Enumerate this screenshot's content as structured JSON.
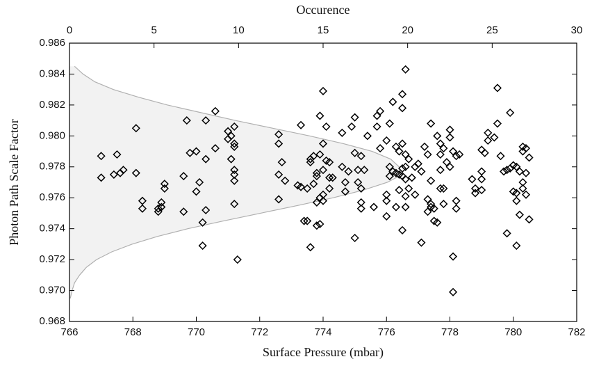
{
  "chart_data": {
    "type": "scatter",
    "xlabel": "Surface Pressure (mbar)",
    "ylabel": "Photon Path Scale Factor",
    "x2label": "Occurence",
    "xlim": [
      766,
      782
    ],
    "xticks": [
      766,
      768,
      770,
      772,
      774,
      776,
      778,
      780,
      782
    ],
    "ylim": [
      0.968,
      0.986
    ],
    "yticks": [
      0.968,
      {
        "value": 0.97,
        "label": "0.970"
      },
      0.972,
      0.974,
      0.976,
      0.978,
      {
        "value": 0.98,
        "label": "0.980"
      },
      0.982,
      0.984,
      0.986
    ],
    "x2lim": [
      0,
      30
    ],
    "x2ticks": [
      0,
      5,
      10,
      15,
      20,
      25,
      30
    ],
    "color": "#000000",
    "series": [
      {
        "x": [
          767.0,
          767.0,
          767.4,
          767.5,
          767.6,
          767.7,
          768.1,
          768.1,
          768.3,
          768.3,
          768.8,
          768.9,
          768.9,
          769.0,
          769.0,
          768.8,
          769.6,
          769.6,
          769.7,
          769.8,
          770.0,
          770.0,
          770.1,
          770.2,
          770.2,
          770.3,
          770.3,
          770.3,
          770.6,
          770.6,
          771.0,
          771.0,
          771.1,
          771.1,
          771.2,
          771.2,
          771.2,
          771.2,
          771.2,
          771.2,
          771.2,
          771.3,
          772.6,
          772.6,
          772.6,
          772.6,
          772.7,
          772.8,
          773.3,
          773.3,
          773.2,
          773.4,
          773.5,
          773.5,
          773.6,
          773.6,
          773.6,
          773.7,
          773.7,
          773.8,
          773.8,
          773.8,
          773.8,
          773.9,
          773.9,
          773.9,
          773.9,
          774.0,
          774.0,
          774.0,
          774.0,
          774.0,
          774.1,
          774.1,
          774.2,
          774.2,
          774.2,
          774.3,
          774.6,
          774.6,
          774.7,
          774.7,
          774.8,
          774.9,
          775.0,
          775.0,
          775.0,
          775.1,
          775.1,
          775.2,
          775.2,
          775.2,
          775.2,
          775.3,
          775.4,
          775.6,
          775.7,
          775.7,
          775.8,
          775.8,
          776.0,
          776.0,
          776.0,
          776.0,
          776.1,
          776.1,
          776.1,
          776.2,
          776.2,
          776.3,
          776.3,
          776.3,
          776.4,
          776.4,
          776.4,
          776.5,
          776.5,
          776.5,
          776.5,
          776.5,
          776.5,
          776.6,
          776.6,
          776.6,
          776.6,
          776.6,
          776.6,
          776.7,
          776.7,
          776.8,
          776.9,
          776.9,
          777.0,
          777.1,
          777.1,
          777.2,
          777.3,
          777.3,
          777.3,
          777.4,
          777.4,
          777.4,
          777.4,
          777.5,
          777.5,
          777.6,
          777.6,
          777.7,
          777.7,
          777.7,
          777.7,
          777.8,
          777.8,
          777.8,
          777.9,
          778.0,
          778.0,
          778.0,
          778.1,
          778.1,
          778.1,
          778.2,
          778.2,
          778.2,
          778.3,
          778.7,
          778.8,
          778.8,
          779.0,
          779.0,
          779.0,
          779.0,
          779.1,
          779.2,
          779.2,
          779.4,
          779.5,
          779.5,
          779.6,
          779.7,
          779.8,
          779.8,
          779.9,
          779.9,
          780.0,
          780.0,
          780.1,
          780.1,
          780.1,
          780.1,
          780.2,
          780.2,
          780.3,
          780.3,
          780.3,
          780.3,
          780.4,
          780.4,
          780.4,
          780.5,
          780.5
        ],
        "values": [
          0.9787,
          0.9773,
          0.9775,
          0.9788,
          0.9776,
          0.9778,
          0.9805,
          0.9776,
          0.9758,
          0.9753,
          0.9751,
          0.9754,
          0.9757,
          0.9769,
          0.9766,
          0.9753,
          0.9774,
          0.9751,
          0.981,
          0.9789,
          0.979,
          0.9764,
          0.977,
          0.9744,
          0.9729,
          0.981,
          0.9785,
          0.9752,
          0.9792,
          0.9816,
          0.9803,
          0.9798,
          0.98,
          0.9785,
          0.9806,
          0.9795,
          0.9793,
          0.9778,
          0.9775,
          0.9771,
          0.9756,
          0.972,
          0.9801,
          0.9795,
          0.9775,
          0.9759,
          0.9783,
          0.9771,
          0.9807,
          0.9767,
          0.9768,
          0.9745,
          0.9745,
          0.9766,
          0.9728,
          0.9783,
          0.9785,
          0.9769,
          0.9787,
          0.9776,
          0.9774,
          0.9757,
          0.9742,
          0.9743,
          0.9813,
          0.9788,
          0.976,
          0.9829,
          0.9795,
          0.9778,
          0.9762,
          0.9758,
          0.9784,
          0.9806,
          0.9783,
          0.9773,
          0.9766,
          0.9773,
          0.9802,
          0.978,
          0.977,
          0.9764,
          0.9777,
          0.9806,
          0.9734,
          0.9812,
          0.9789,
          0.9778,
          0.977,
          0.9757,
          0.9753,
          0.9766,
          0.9787,
          0.9778,
          0.98,
          0.9754,
          0.9813,
          0.9806,
          0.9816,
          0.9792,
          0.9797,
          0.9762,
          0.9758,
          0.9748,
          0.9808,
          0.978,
          0.9774,
          0.9822,
          0.9777,
          0.9776,
          0.9754,
          0.9793,
          0.979,
          0.9775,
          0.9765,
          0.9827,
          0.9818,
          0.9795,
          0.9779,
          0.9774,
          0.9739,
          0.9843,
          0.9788,
          0.978,
          0.9772,
          0.9761,
          0.9754,
          0.9785,
          0.9766,
          0.9773,
          0.978,
          0.9762,
          0.9782,
          0.9777,
          0.9731,
          0.9793,
          0.9788,
          0.9759,
          0.9751,
          0.9808,
          0.9771,
          0.9756,
          0.9754,
          0.9753,
          0.9745,
          0.9744,
          0.98,
          0.9795,
          0.9788,
          0.9778,
          0.9766,
          0.9792,
          0.9766,
          0.9756,
          0.9783,
          0.9804,
          0.9799,
          0.978,
          0.979,
          0.9722,
          0.9699,
          0.9787,
          0.9758,
          0.9753,
          0.9788,
          0.9772,
          0.9766,
          0.9763,
          0.9777,
          0.9772,
          0.9765,
          0.9791,
          0.9789,
          0.9797,
          0.9802,
          0.9799,
          0.9831,
          0.9808,
          0.9787,
          0.9777,
          0.9778,
          0.9737,
          0.9779,
          0.9815,
          0.9781,
          0.9764,
          0.978,
          0.9763,
          0.9758,
          0.9729,
          0.9777,
          0.9749,
          0.9793,
          0.979,
          0.977,
          0.9766,
          0.9792,
          0.9776,
          0.9762,
          0.9786,
          0.9746
        ]
      }
    ],
    "distribution": {
      "color": "#b0b0b0",
      "y": [
        0.9845,
        0.984,
        0.9835,
        0.983,
        0.9825,
        0.982,
        0.9815,
        0.981,
        0.9805,
        0.98,
        0.9795,
        0.979,
        0.9785,
        0.978,
        0.9777,
        0.9774,
        0.977,
        0.9765,
        0.976,
        0.9755,
        0.975,
        0.9745,
        0.974,
        0.9735,
        0.973,
        0.9725,
        0.972,
        0.9715,
        0.971,
        0.9705,
        0.97,
        0.9695
      ],
      "occurrence": [
        0.3,
        0.8,
        1.5,
        2.6,
        4.1,
        5.8,
        7.8,
        9.8,
        12.0,
        14.2,
        16.2,
        17.9,
        19.0,
        19.5,
        19.6,
        19.5,
        18.8,
        17.4,
        15.6,
        13.5,
        11.3,
        9.1,
        7.0,
        5.2,
        3.7,
        2.5,
        1.6,
        1.0,
        0.6,
        0.3,
        0.15,
        0.05
      ]
    }
  }
}
